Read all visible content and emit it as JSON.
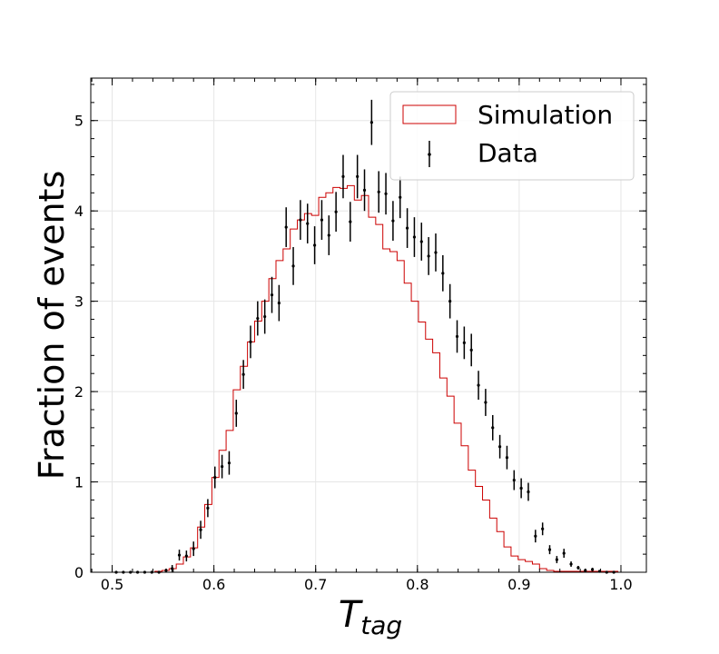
{
  "chart_data": {
    "type": "histogram",
    "xlabel_main": "T",
    "xlabel_sub": "tag",
    "ylabel": "Fraction of events",
    "xlim": [
      0.479,
      1.025
    ],
    "ylim": [
      0,
      5.47
    ],
    "x_ticks": [
      0.5,
      0.6,
      0.7,
      0.8,
      0.9,
      1.0
    ],
    "x_tick_labels": [
      "0.5",
      "0.6",
      "0.7",
      "0.8",
      "0.9",
      "1.0"
    ],
    "y_ticks": [
      0,
      1,
      2,
      3,
      4,
      5
    ],
    "y_tick_labels": [
      "0",
      "1",
      "2",
      "3",
      "4",
      "5"
    ],
    "grid": true,
    "legend_position": "top-right",
    "colors": {
      "simulation": "#cc0000",
      "data": "#000000"
    },
    "series": [
      {
        "name": "Simulation",
        "kind": "step",
        "bin_edges": [
          0.5,
          0.507,
          0.514,
          0.521,
          0.528,
          0.535,
          0.542,
          0.549,
          0.556,
          0.563,
          0.57,
          0.577,
          0.584,
          0.591,
          0.598,
          0.605,
          0.612,
          0.619,
          0.626,
          0.633,
          0.64,
          0.647,
          0.654,
          0.661,
          0.668,
          0.675,
          0.682,
          0.689,
          0.696,
          0.703,
          0.71,
          0.717,
          0.724,
          0.731,
          0.738,
          0.745,
          0.752,
          0.759,
          0.766,
          0.773,
          0.78,
          0.787,
          0.794,
          0.801,
          0.808,
          0.815,
          0.822,
          0.829,
          0.836,
          0.843,
          0.85,
          0.857,
          0.864,
          0.871,
          0.878,
          0.885,
          0.892,
          0.899,
          0.906,
          0.913,
          0.92,
          0.927,
          0.934,
          0.941,
          0.948,
          0.955,
          0.962,
          0.969,
          0.976,
          0.983,
          0.99,
          0.997
        ],
        "values": [
          0,
          0,
          0,
          0,
          0,
          0,
          0.01,
          0.02,
          0.04,
          0.09,
          0.17,
          0.27,
          0.5,
          0.75,
          1.05,
          1.35,
          1.57,
          2.02,
          2.28,
          2.55,
          2.78,
          3.0,
          3.25,
          3.45,
          3.58,
          3.8,
          3.9,
          3.97,
          3.95,
          4.15,
          4.2,
          4.26,
          4.25,
          4.28,
          4.12,
          4.17,
          3.93,
          3.85,
          3.58,
          3.55,
          3.45,
          3.2,
          3.0,
          2.77,
          2.58,
          2.43,
          2.15,
          1.95,
          1.65,
          1.4,
          1.13,
          0.95,
          0.8,
          0.6,
          0.45,
          0.28,
          0.18,
          0.14,
          0.12,
          0.09,
          0.04,
          0.02,
          0.01,
          0.01,
          0.01,
          0.01,
          0.01,
          0.01,
          0.01,
          0.01,
          0.01
        ]
      },
      {
        "name": "Data",
        "kind": "errorbar",
        "x": [
          0.504,
          0.511,
          0.518,
          0.525,
          0.532,
          0.539,
          0.546,
          0.553,
          0.559,
          0.566,
          0.573,
          0.58,
          0.587,
          0.594,
          0.601,
          0.608,
          0.615,
          0.622,
          0.629,
          0.636,
          0.643,
          0.65,
          0.657,
          0.664,
          0.671,
          0.678,
          0.685,
          0.692,
          0.699,
          0.706,
          0.713,
          0.72,
          0.727,
          0.734,
          0.741,
          0.748,
          0.755,
          0.762,
          0.769,
          0.776,
          0.783,
          0.79,
          0.797,
          0.804,
          0.811,
          0.818,
          0.825,
          0.832,
          0.839,
          0.846,
          0.853,
          0.86,
          0.867,
          0.874,
          0.881,
          0.888,
          0.895,
          0.902,
          0.909,
          0.916,
          0.923,
          0.93,
          0.937,
          0.944,
          0.951,
          0.958,
          0.965,
          0.972,
          0.979,
          0.986,
          0.993
        ],
        "y": [
          0.0,
          0.0,
          0.0,
          0.0,
          0.0,
          0.0,
          0.0,
          0.02,
          0.04,
          0.19,
          0.18,
          0.26,
          0.47,
          0.71,
          1.05,
          1.17,
          1.21,
          1.76,
          2.19,
          2.55,
          2.81,
          2.83,
          3.07,
          2.98,
          3.82,
          3.39,
          3.9,
          3.86,
          3.62,
          3.9,
          3.73,
          3.99,
          4.38,
          3.88,
          4.38,
          4.23,
          4.98,
          4.21,
          4.19,
          3.89,
          4.15,
          3.81,
          3.71,
          3.66,
          3.5,
          3.54,
          3.31,
          3.0,
          2.61,
          2.54,
          2.46,
          2.07,
          1.88,
          1.6,
          1.39,
          1.27,
          1.02,
          0.93,
          0.89,
          0.4,
          0.48,
          0.25,
          0.14,
          0.21,
          0.09,
          0.05,
          0.02,
          0.03,
          0.01,
          0.0,
          0.0
        ],
        "yerr": [
          0.0,
          0.0,
          0.0,
          0.0,
          0.0,
          0.0,
          0.0,
          0.02,
          0.04,
          0.06,
          0.06,
          0.08,
          0.1,
          0.1,
          0.12,
          0.13,
          0.13,
          0.15,
          0.16,
          0.18,
          0.19,
          0.19,
          0.2,
          0.2,
          0.22,
          0.21,
          0.22,
          0.22,
          0.21,
          0.22,
          0.22,
          0.22,
          0.24,
          0.22,
          0.24,
          0.23,
          0.25,
          0.23,
          0.23,
          0.22,
          0.23,
          0.22,
          0.22,
          0.21,
          0.21,
          0.21,
          0.2,
          0.19,
          0.18,
          0.18,
          0.18,
          0.16,
          0.15,
          0.14,
          0.13,
          0.13,
          0.11,
          0.11,
          0.1,
          0.07,
          0.07,
          0.05,
          0.04,
          0.05,
          0.03,
          0.02,
          0.02,
          0.02,
          0.01,
          0.0,
          0.0
        ]
      }
    ]
  }
}
